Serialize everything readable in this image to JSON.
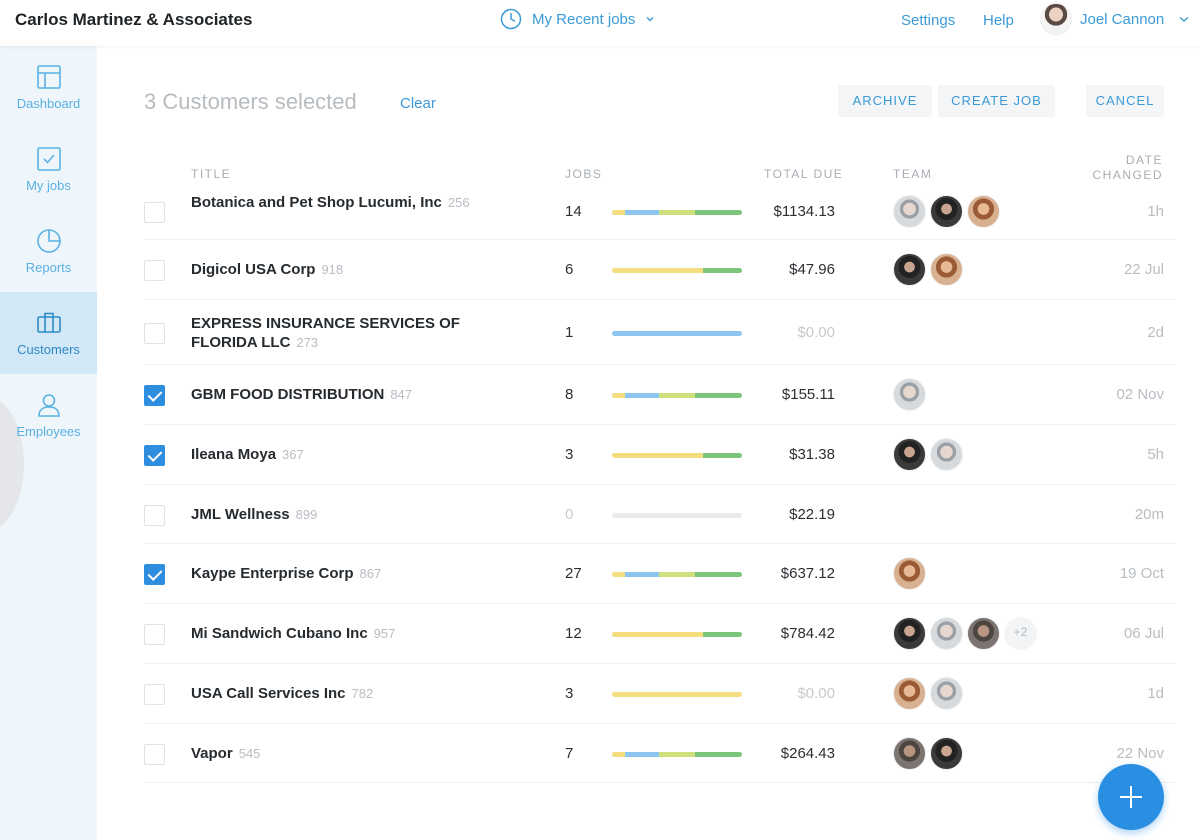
{
  "header": {
    "company": "Carlos Martinez & Associates",
    "recent_jobs": "My Recent jobs",
    "settings": "Settings",
    "help": "Help",
    "user_name": "Joel Cannon"
  },
  "sidebar": {
    "items": [
      {
        "label": "Dashboard",
        "icon": "dashboard-icon"
      },
      {
        "label": "My jobs",
        "icon": "checkbox-icon"
      },
      {
        "label": "Reports",
        "icon": "pie-chart-icon"
      },
      {
        "label": "Customers",
        "icon": "briefcase-icon",
        "active": true
      },
      {
        "label": "Employees",
        "icon": "person-icon"
      }
    ]
  },
  "toolbar": {
    "selection_text": "3 Customers selected",
    "clear": "Clear",
    "archive": "ARCHIVE",
    "create_job": "CREATE JOB",
    "cancel": "CANCEL"
  },
  "columns": {
    "title": "TITLE",
    "jobs": "JOBS",
    "total_due": "TOTAL DUE",
    "team": "TEAM",
    "date_changed_1": "DATE",
    "date_changed_2": "CHANGED"
  },
  "colors": {
    "accent": "#3b9ad6",
    "bar_yellow": "#f3dd7e",
    "bar_blue": "#8cc6ee",
    "bar_lime": "#cfe07e",
    "bar_green": "#7cc67c",
    "bar_empty": "#e8eaec"
  },
  "customers": [
    {
      "name": "Botanica and Pet Shop Lucumi, Inc",
      "id": "256",
      "jobs": "14",
      "total": "$1134.13",
      "date": "1h",
      "checked": false,
      "bar": [
        [
          "yellow",
          0.1
        ],
        [
          "blue",
          0.26
        ],
        [
          "lime",
          0.28
        ],
        [
          "green",
          0.36
        ]
      ],
      "team_more": ""
    },
    {
      "name": "Digicol USA Corp",
      "id": "918",
      "jobs": "6",
      "total": "$47.96",
      "date": "22 Jul",
      "checked": false,
      "bar": [
        [
          "yellow",
          0.7
        ],
        [
          "green",
          0.3
        ]
      ],
      "team_more": ""
    },
    {
      "name": "EXPRESS INSURANCE SERVICES OF FLORIDA LLC",
      "id": "273",
      "jobs": "1",
      "total": "$0.00",
      "date": "2d",
      "checked": false,
      "bar": [
        [
          "blue",
          1.0
        ]
      ],
      "team_more": "",
      "total_muted": true
    },
    {
      "name": "GBM FOOD DISTRIBUTION",
      "id": "847",
      "jobs": "8",
      "total": "$155.11",
      "date": "02 Nov",
      "checked": true,
      "bar": [
        [
          "yellow",
          0.1
        ],
        [
          "blue",
          0.26
        ],
        [
          "lime",
          0.28
        ],
        [
          "green",
          0.36
        ]
      ],
      "team_more": ""
    },
    {
      "name": "Ileana Moya",
      "id": "367",
      "jobs": "3",
      "total": "$31.38",
      "date": "5h",
      "checked": true,
      "bar": [
        [
          "yellow",
          0.7
        ],
        [
          "green",
          0.3
        ]
      ],
      "team_more": ""
    },
    {
      "name": "JML Wellness",
      "id": "899",
      "jobs": "0",
      "total": "$22.19",
      "date": "20m",
      "checked": false,
      "bar": [],
      "team_more": "",
      "jobs_muted": true
    },
    {
      "name": "Kaype Enterprise Corp",
      "id": "867",
      "jobs": "27",
      "total": "$637.12",
      "date": "19 Oct",
      "checked": true,
      "bar": [
        [
          "yellow",
          0.1
        ],
        [
          "blue",
          0.26
        ],
        [
          "lime",
          0.28
        ],
        [
          "green",
          0.36
        ]
      ],
      "team_more": ""
    },
    {
      "name": "Mi Sandwich Cubano Inc",
      "id": "957",
      "jobs": "12",
      "total": "$784.42",
      "date": "06 Jul",
      "checked": false,
      "bar": [
        [
          "yellow",
          0.7
        ],
        [
          "green",
          0.3
        ]
      ],
      "team_more": "+2"
    },
    {
      "name": "USA Call Services Inc",
      "id": "782",
      "jobs": "3",
      "total": "$0.00",
      "date": "1d",
      "checked": false,
      "bar": [
        [
          "yellow",
          1.0
        ]
      ],
      "team_more": "",
      "total_muted": true
    },
    {
      "name": "Vapor",
      "id": "545",
      "jobs": "7",
      "total": "$264.43",
      "date": "22 Nov",
      "checked": false,
      "bar": [
        [
          "yellow",
          0.1
        ],
        [
          "blue",
          0.26
        ],
        [
          "lime",
          0.28
        ],
        [
          "green",
          0.36
        ]
      ],
      "team_more": ""
    }
  ]
}
